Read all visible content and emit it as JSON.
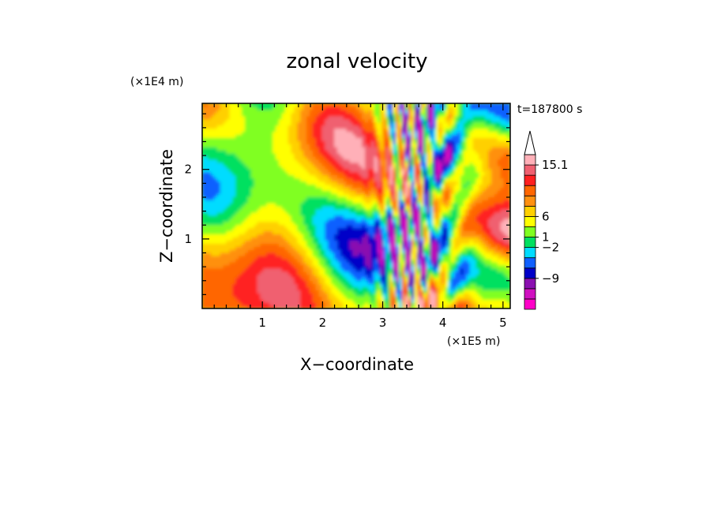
{
  "chart_data": {
    "type": "heatmap",
    "title": "zonal velocity",
    "xlabel": "X−coordinate",
    "ylabel": "Z−coordinate",
    "x_unit": "(×1E5 m)",
    "y_unit": "(×1E4 m)",
    "time_label": "t=187800 s",
    "xlim": [
      0,
      5.12
    ],
    "ylim": [
      0,
      2.95
    ],
    "x_ticks": [
      1,
      2,
      3,
      4,
      5
    ],
    "y_ticks": [
      1,
      2
    ],
    "colorbar": {
      "tick_labels": [
        "15.1",
        "6",
        "1",
        "−2",
        "−9"
      ],
      "level_colors": [
        "#ff00c8",
        "#d010c0",
        "#8a10b0",
        "#0000c8",
        "#1060ff",
        "#00dcff",
        "#00e060",
        "#80ff20",
        "#ffff00",
        "#ffd000",
        "#ff9010",
        "#ff6600",
        "#ff2020",
        "#f06070",
        "#ffb0b8"
      ],
      "extend": "max"
    },
    "grid": false
  }
}
